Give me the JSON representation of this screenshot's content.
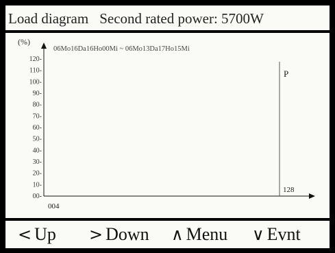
{
  "header": {
    "title": "Load diagram",
    "rated_power_label": "Second rated power: 5700W"
  },
  "chart_data": {
    "type": "line",
    "y_unit_label": "(%)",
    "time_range": "06Mo16Da16Ho00Mi ~ 06Mo13Da17Ho15Mi",
    "y_ticks": [
      "120",
      "110",
      "100",
      "90",
      "80",
      "70",
      "60",
      "50",
      "40",
      "30",
      "20",
      "10",
      "00"
    ],
    "ylim": [
      0,
      125
    ],
    "x_start_label": "004",
    "x_end_label": "128",
    "marker_label": "P",
    "series": []
  },
  "footer": {
    "up_glyph": "<",
    "up_label": "Up",
    "down_glyph": ">",
    "down_label": "Down",
    "menu_glyph": "∧",
    "menu_label": "Menu",
    "evnt_glyph": "∨",
    "evnt_label": "Evnt"
  }
}
